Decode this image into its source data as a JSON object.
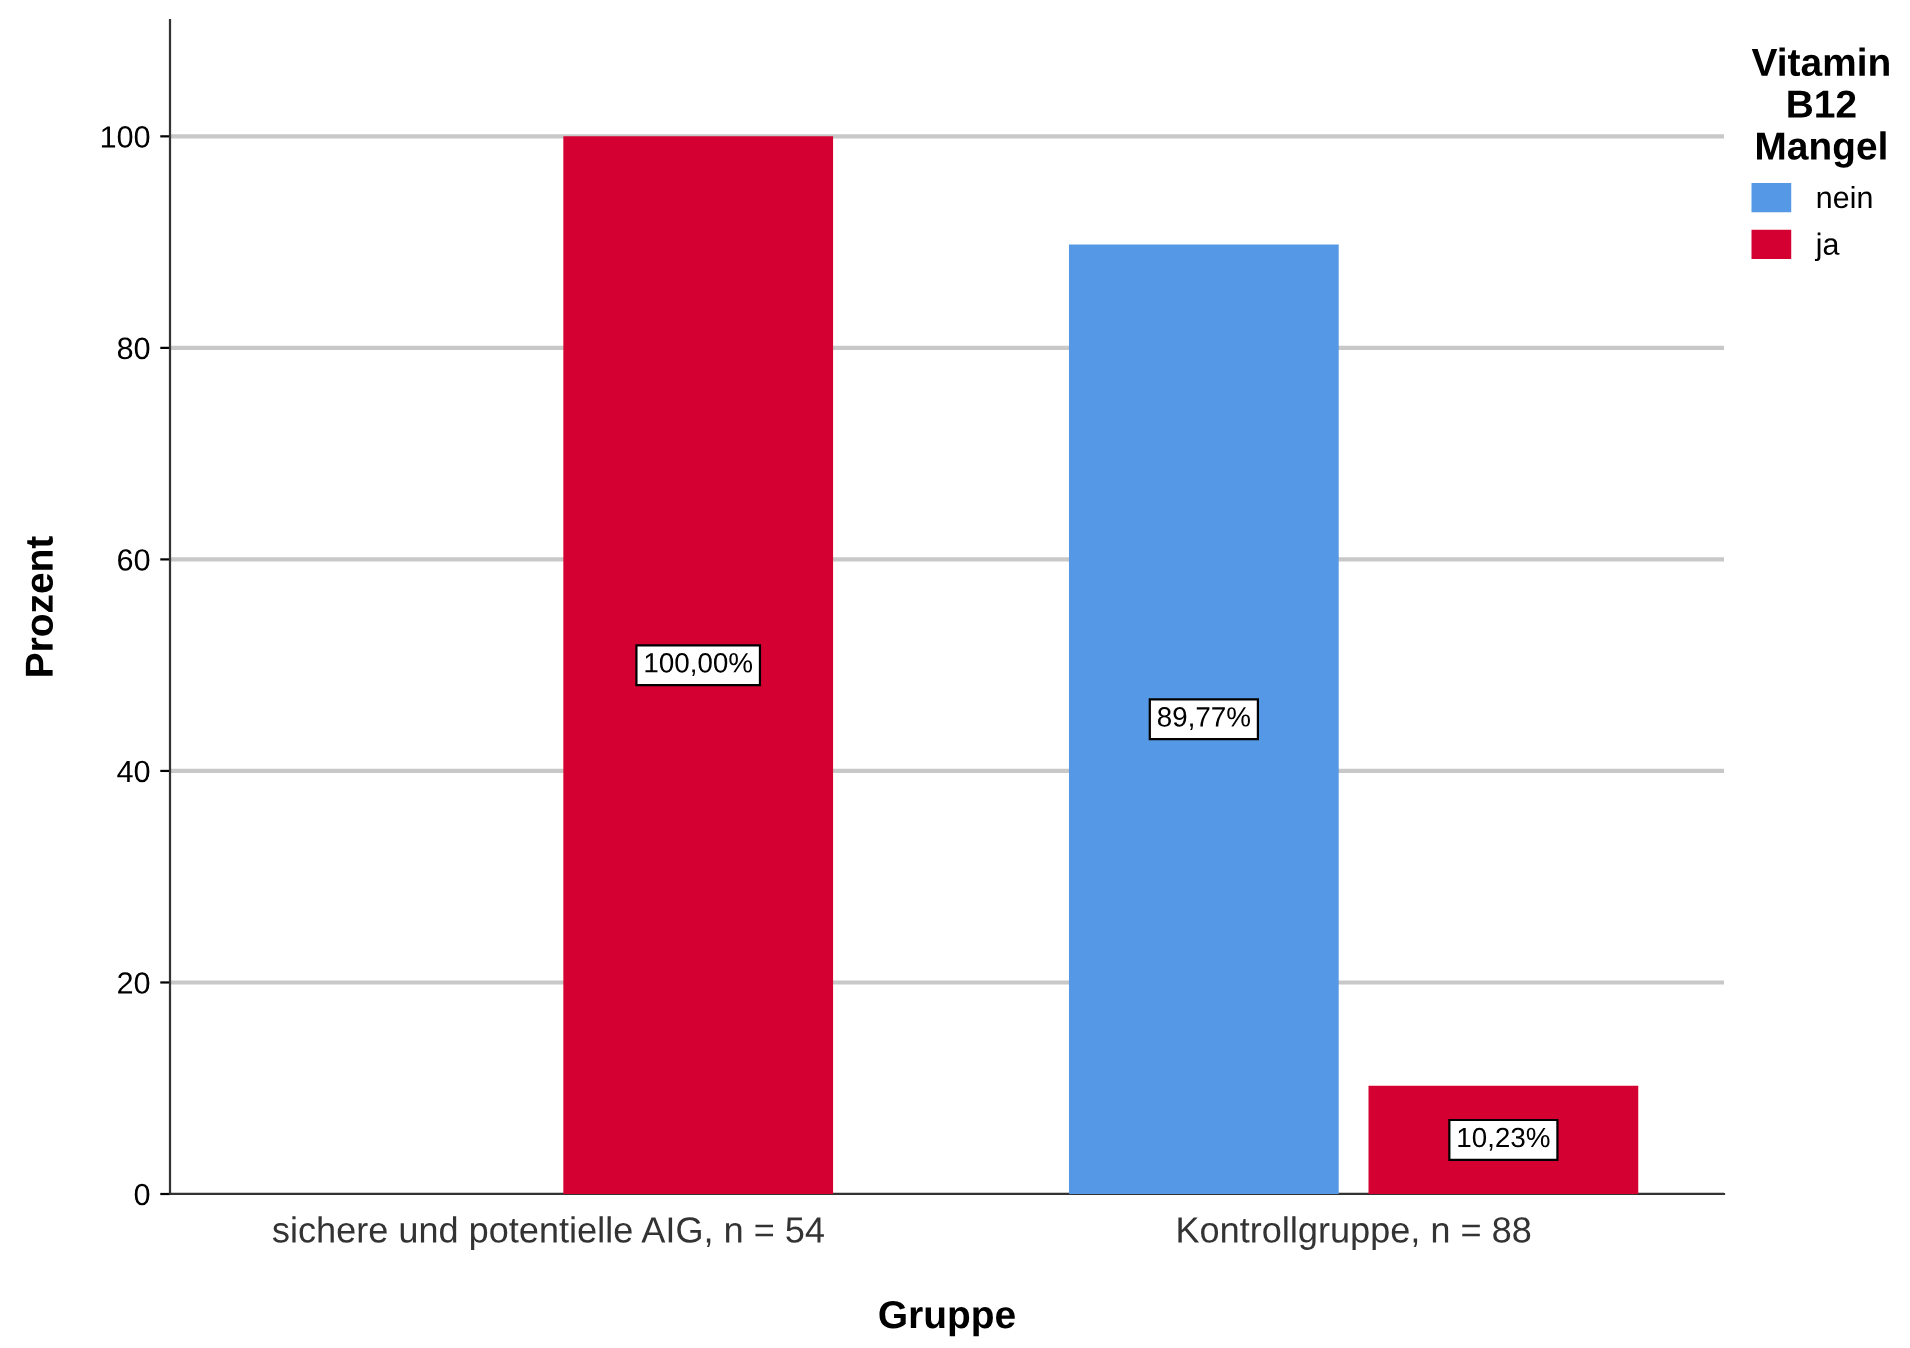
{
  "chart_data": {
    "type": "bar",
    "xlabel": "Gruppe",
    "ylabel": "Prozent",
    "legend_title": "Vitamin\nB12\nMangel",
    "categories": [
      "sichere und potentielle AIG, n = 54",
      "Kontrollgruppe, n = 88"
    ],
    "series": [
      {
        "name": "nein",
        "color": "#5599e6",
        "values": [
          null,
          89.77
        ],
        "value_labels": [
          null,
          "89,77%"
        ]
      },
      {
        "name": "ja",
        "color": "#d50032",
        "values": [
          100,
          10.23
        ],
        "value_labels": [
          "100,00%",
          "10,23%"
        ]
      }
    ],
    "ylim": [
      0,
      111
    ],
    "yticks": [
      0,
      20,
      40,
      60,
      80,
      100
    ],
    "grid": "y",
    "legend": "top right"
  }
}
